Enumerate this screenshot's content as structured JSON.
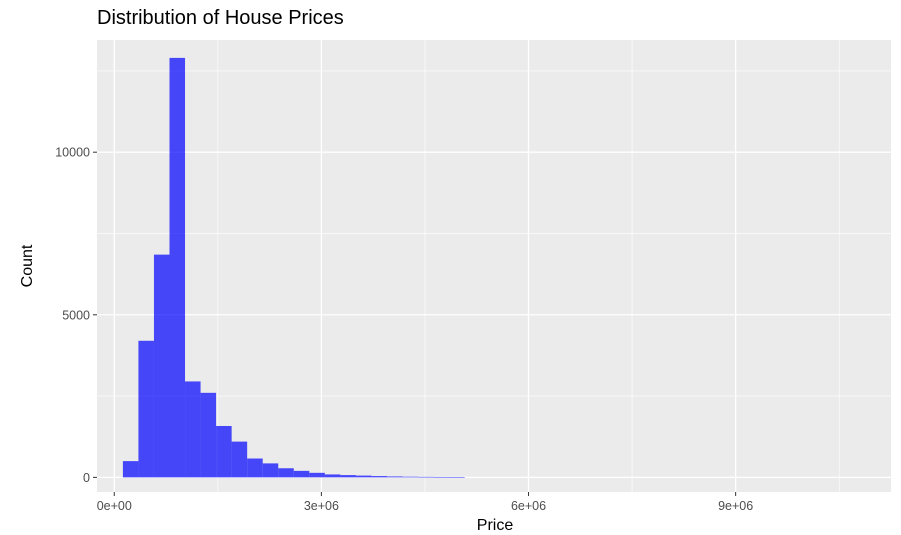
{
  "chart_data": {
    "type": "bar",
    "title": "Distribution of House Prices",
    "xlabel": "Price",
    "ylabel": "Count",
    "xlim": [
      -250000,
      11250000
    ],
    "ylim": [
      -450,
      13450
    ],
    "x_ticks": [
      {
        "value": 0,
        "label": "0e+00"
      },
      {
        "value": 3000000,
        "label": "3e+06"
      },
      {
        "value": 6000000,
        "label": "6e+06"
      },
      {
        "value": 9000000,
        "label": "9e+06"
      }
    ],
    "x_minor_ticks": [
      1500000,
      4500000,
      7500000,
      10500000
    ],
    "y_ticks": [
      {
        "value": 0,
        "label": "0"
      },
      {
        "value": 5000,
        "label": "5000"
      },
      {
        "value": 10000,
        "label": "10000"
      }
    ],
    "y_minor_ticks": [
      2500,
      7500,
      12500
    ],
    "grid": true,
    "panel_color": "#ebebeb",
    "grid_color": "#ffffff",
    "bar_color": "#0000ff",
    "bar_opacity": 0.7,
    "bins": [
      {
        "x0": 125000,
        "x1": 350000,
        "count": 500
      },
      {
        "x0": 350000,
        "x1": 575000,
        "count": 4200
      },
      {
        "x0": 575000,
        "x1": 800000,
        "count": 6850
      },
      {
        "x0": 800000,
        "x1": 1025000,
        "count": 12900
      },
      {
        "x0": 1025000,
        "x1": 1250000,
        "count": 2950
      },
      {
        "x0": 1250000,
        "x1": 1475000,
        "count": 2600
      },
      {
        "x0": 1475000,
        "x1": 1700000,
        "count": 1580
      },
      {
        "x0": 1700000,
        "x1": 1925000,
        "count": 1100
      },
      {
        "x0": 1925000,
        "x1": 2150000,
        "count": 580
      },
      {
        "x0": 2150000,
        "x1": 2375000,
        "count": 430
      },
      {
        "x0": 2375000,
        "x1": 2600000,
        "count": 280
      },
      {
        "x0": 2600000,
        "x1": 2825000,
        "count": 200
      },
      {
        "x0": 2825000,
        "x1": 3050000,
        "count": 140
      },
      {
        "x0": 3050000,
        "x1": 3275000,
        "count": 90
      },
      {
        "x0": 3275000,
        "x1": 3500000,
        "count": 70
      },
      {
        "x0": 3500000,
        "x1": 3725000,
        "count": 55
      },
      {
        "x0": 3725000,
        "x1": 3950000,
        "count": 40
      },
      {
        "x0": 3950000,
        "x1": 4175000,
        "count": 28
      },
      {
        "x0": 4175000,
        "x1": 4400000,
        "count": 20
      },
      {
        "x0": 4400000,
        "x1": 4625000,
        "count": 15
      },
      {
        "x0": 4625000,
        "x1": 4850000,
        "count": 12
      },
      {
        "x0": 4850000,
        "x1": 5075000,
        "count": 8
      }
    ]
  }
}
